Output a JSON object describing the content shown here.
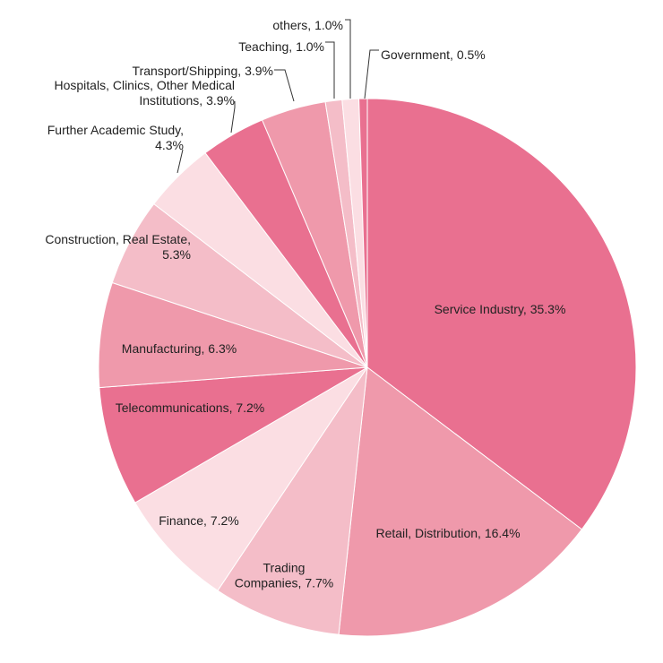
{
  "chart_data": {
    "type": "pie",
    "title": "",
    "slices": [
      {
        "lines": [
          "Service Industry,  35.3%"
        ],
        "value": 35.3,
        "color": "#e97090"
      },
      {
        "lines": [
          "Retail, Distribution, 16.4%"
        ],
        "value": 16.4,
        "color": "#ef99ab"
      },
      {
        "lines": [
          "Trading",
          "Companies, 7.7%"
        ],
        "value": 7.7,
        "color": "#f4bdc8"
      },
      {
        "lines": [
          "Finance, 7.2%"
        ],
        "value": 7.2,
        "color": "#fbdee3"
      },
      {
        "lines": [
          "Telecommunications,  7.2%"
        ],
        "value": 7.2,
        "color": "#e97090"
      },
      {
        "lines": [
          "Manufacturing,  6.3%"
        ],
        "value": 6.3,
        "color": "#ef99ab"
      },
      {
        "lines": [
          "Construction,  Real Estate,",
          "5.3%"
        ],
        "value": 5.3,
        "color": "#f4bdc8"
      },
      {
        "lines": [
          "Further Academic Study,",
          "4.3%"
        ],
        "value": 4.3,
        "color": "#fbdee3"
      },
      {
        "lines": [
          "Hospitals,  Clinics,  Other Medical",
          "Institutions,  3.9%"
        ],
        "value": 3.9,
        "color": "#e97090"
      },
      {
        "lines": [
          "Transport/Shipping,  3.9%"
        ],
        "value": 3.9,
        "color": "#ef99ab"
      },
      {
        "lines": [
          "Teaching,  1.0%"
        ],
        "value": 1.0,
        "color": "#f4bdc8"
      },
      {
        "lines": [
          "others,  1.0%"
        ],
        "value": 1.0,
        "color": "#fbdee3"
      },
      {
        "lines": [
          "Government,  0.5%"
        ],
        "value": 0.5,
        "color": "#e97090"
      }
    ]
  }
}
